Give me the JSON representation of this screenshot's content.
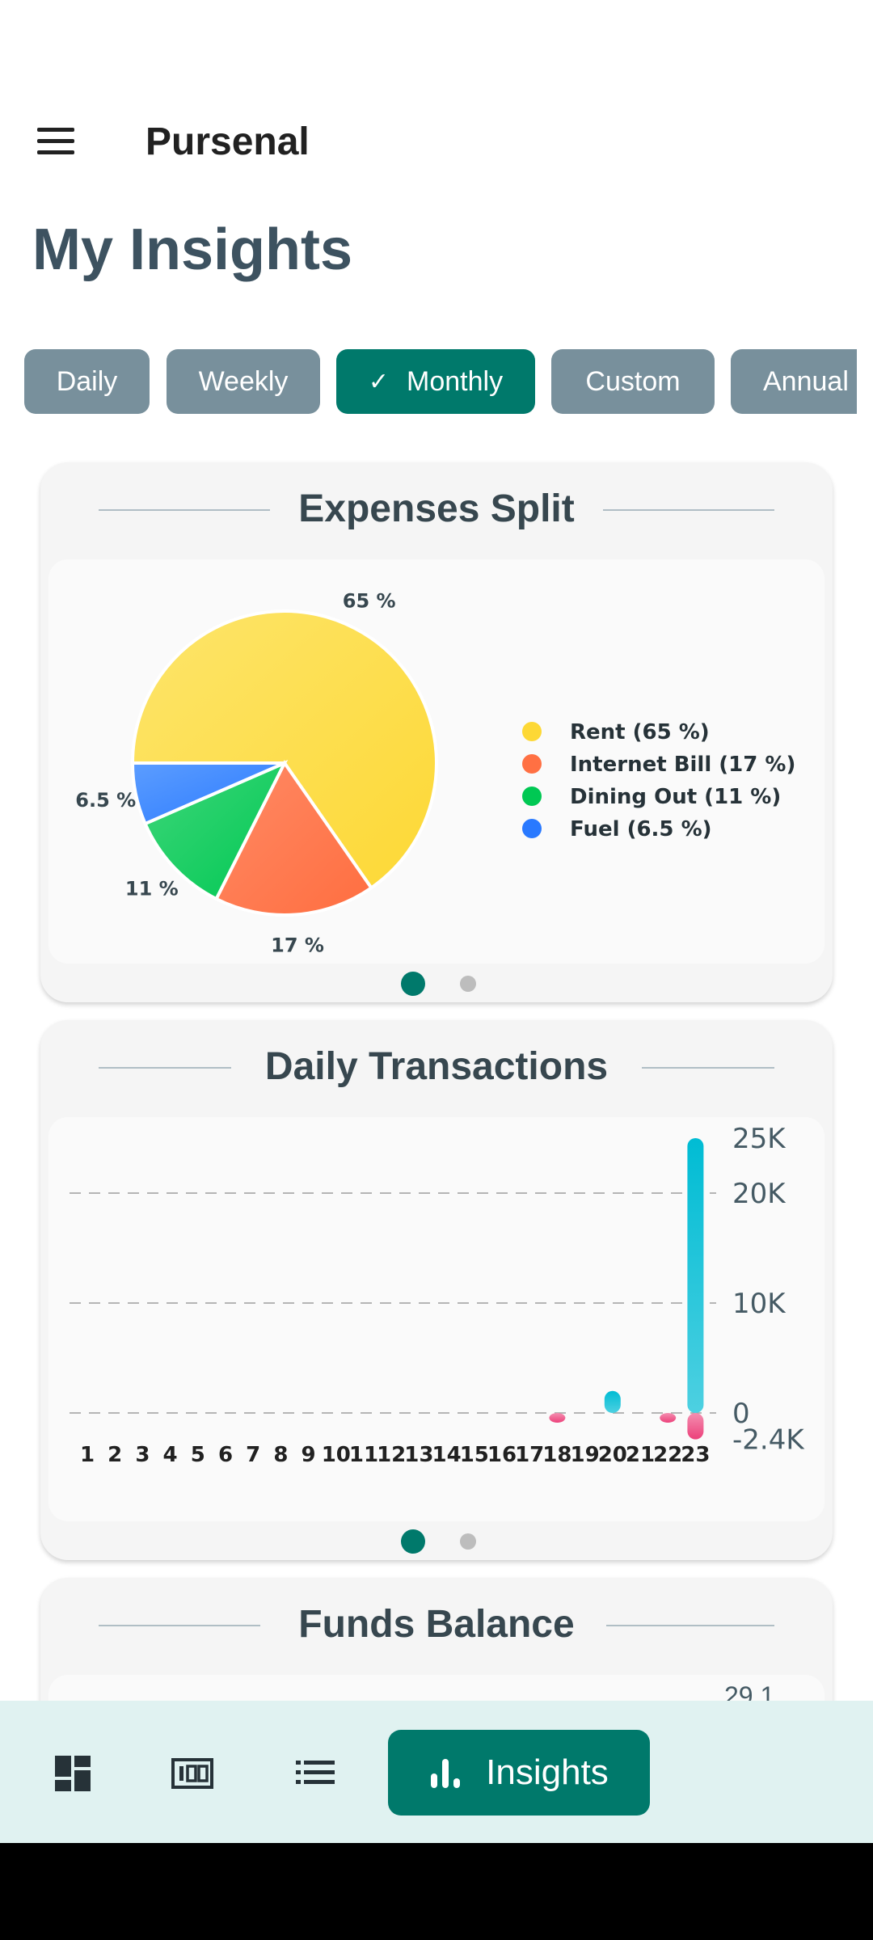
{
  "app": {
    "title": "Pursenal"
  },
  "page": {
    "title": "My Insights"
  },
  "filters": [
    {
      "label": "Daily",
      "selected": false
    },
    {
      "label": "Weekly",
      "selected": false
    },
    {
      "label": "Monthly",
      "selected": true
    },
    {
      "label": "Custom",
      "selected": false
    },
    {
      "label": "Annual",
      "selected": false
    }
  ],
  "cards": {
    "expenses": {
      "title": "Expenses Split"
    },
    "daily": {
      "title": "Daily Transactions"
    },
    "funds": {
      "title": "Funds Balance",
      "partial_value": "29.1"
    }
  },
  "chart_data": [
    {
      "type": "pie",
      "title": "Expenses Split",
      "slices": [
        {
          "name": "Rent",
          "value": 65,
          "label": "65 %",
          "legend": "Rent (65 %)",
          "color": "#fdd835"
        },
        {
          "name": "Internet Bill",
          "value": 17,
          "label": "17 %",
          "legend": "Internet Bill (17 %)",
          "color": "#ff7043"
        },
        {
          "name": "Dining Out",
          "value": 11,
          "label": "11 %",
          "legend": "Dining Out (11 %)",
          "color": "#00c853"
        },
        {
          "name": "Fuel",
          "value": 6.5,
          "label": "6.5 %",
          "legend": "Fuel (6.5 %)",
          "color": "#2979ff"
        }
      ],
      "legend_position": "right"
    },
    {
      "type": "bar",
      "title": "Daily Transactions",
      "categories": [
        "1",
        "2",
        "3",
        "4",
        "5",
        "6",
        "7",
        "8",
        "9",
        "10",
        "11",
        "12",
        "13",
        "14",
        "15",
        "16",
        "17",
        "18",
        "19",
        "20",
        "21",
        "22",
        "23"
      ],
      "series": [
        {
          "values": [
            0,
            0,
            0,
            0,
            0,
            0,
            0,
            0,
            0,
            0,
            0,
            0,
            0,
            0,
            0,
            0,
            0,
            0,
            0,
            2000,
            0,
            0,
            25000
          ],
          "color": "#00bcd4"
        },
        {
          "values": [
            0,
            0,
            0,
            0,
            0,
            0,
            0,
            0,
            0,
            0,
            0,
            0,
            0,
            0,
            0,
            0,
            0,
            -500,
            0,
            0,
            0,
            -400,
            -2400
          ],
          "color": "#ec407a"
        }
      ],
      "y_ticks": [
        {
          "value": 25000,
          "label": "25K"
        },
        {
          "value": 20000,
          "label": "20K"
        },
        {
          "value": 10000,
          "label": "10K"
        },
        {
          "value": 0,
          "label": "0"
        },
        {
          "value": -2400,
          "label": "-2.4K"
        }
      ],
      "ylim": [
        -2400,
        25000
      ],
      "grid": true,
      "y_axis_position": "right"
    }
  ],
  "nav": {
    "items": [
      {
        "icon": "dashboard-icon"
      },
      {
        "icon": "counter-icon"
      },
      {
        "icon": "list-icon"
      }
    ],
    "active_label": "Insights"
  }
}
